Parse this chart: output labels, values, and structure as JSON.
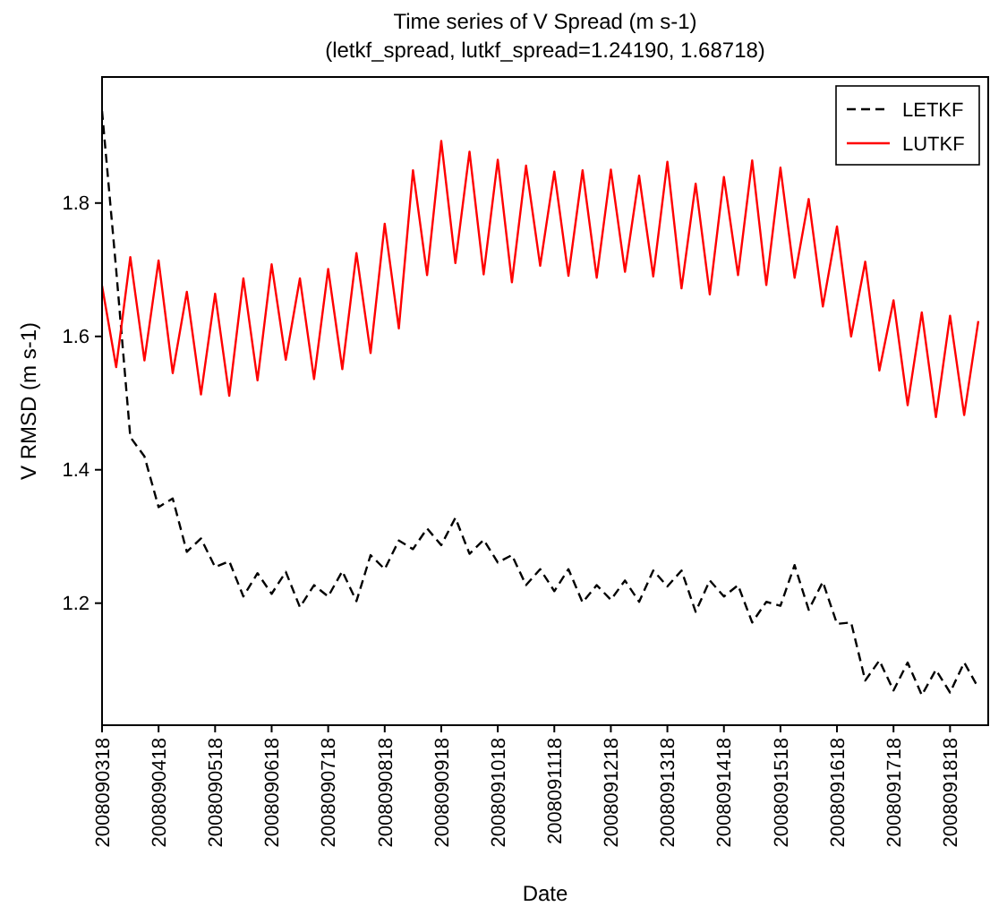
{
  "chart_data": {
    "type": "line",
    "title": "Time series of V Spread (m s-1)",
    "subtitle": "(letkf_spread, lutkf_spread=1.24190, 1.68718)",
    "xlabel": "Date",
    "ylabel": "V RMSD (m s-1)",
    "categories": [
      "2008090318",
      null,
      null,
      null,
      "2008090418",
      null,
      null,
      null,
      "2008090518",
      null,
      null,
      null,
      "2008090618",
      null,
      null,
      null,
      "2008090718",
      null,
      null,
      null,
      "2008090818",
      null,
      null,
      null,
      "2008090918",
      null,
      null,
      null,
      "2008091018",
      null,
      null,
      null,
      "2008091118",
      null,
      null,
      null,
      "2008091218",
      null,
      null,
      null,
      "2008091318",
      null,
      null,
      null,
      "2008091418",
      null,
      null,
      null,
      "2008091518",
      null,
      null,
      null,
      "2008091618",
      null,
      null,
      null,
      "2008091718",
      null,
      null,
      null,
      "2008091818",
      null,
      null
    ],
    "series": [
      {
        "name": "LETKF",
        "color": "#000000",
        "line_style": "dashed",
        "values": [
          1.938,
          1.7,
          1.449,
          1.42,
          1.344,
          1.357,
          1.277,
          1.297,
          1.254,
          1.263,
          1.21,
          1.245,
          1.214,
          1.247,
          1.194,
          1.227,
          1.21,
          1.248,
          1.203,
          1.272,
          1.251,
          1.294,
          1.281,
          1.312,
          1.287,
          1.328,
          1.274,
          1.295,
          1.261,
          1.272,
          1.227,
          1.251,
          1.218,
          1.251,
          1.201,
          1.227,
          1.205,
          1.234,
          1.202,
          1.249,
          1.225,
          1.249,
          1.187,
          1.234,
          1.21,
          1.227,
          1.171,
          1.202,
          1.196,
          1.257,
          1.19,
          1.232,
          1.169,
          1.171,
          1.084,
          1.114,
          1.069,
          1.111,
          1.062,
          1.1,
          1.066,
          1.111,
          1.073
        ]
      },
      {
        "name": "LUTKF",
        "color": "#ff0000",
        "line_style": "solid",
        "values": [
          1.676,
          1.554,
          1.719,
          1.564,
          1.714,
          1.545,
          1.667,
          1.513,
          1.664,
          1.511,
          1.687,
          1.534,
          1.708,
          1.565,
          1.687,
          1.536,
          1.701,
          1.551,
          1.725,
          1.575,
          1.769,
          1.612,
          1.849,
          1.692,
          1.893,
          1.71,
          1.877,
          1.693,
          1.865,
          1.681,
          1.856,
          1.706,
          1.847,
          1.691,
          1.849,
          1.688,
          1.85,
          1.697,
          1.841,
          1.69,
          1.862,
          1.672,
          1.829,
          1.663,
          1.839,
          1.692,
          1.864,
          1.677,
          1.853,
          1.688,
          1.806,
          1.645,
          1.765,
          1.6,
          1.712,
          1.549,
          1.654,
          1.497,
          1.636,
          1.479,
          1.631,
          1.482,
          1.623
        ]
      }
    ],
    "ylim": [
      1.017,
      1.989
    ],
    "yticks": [
      1.2,
      1.4,
      1.6,
      1.8
    ],
    "legend": "top right",
    "grid": false,
    "marker": "none"
  }
}
